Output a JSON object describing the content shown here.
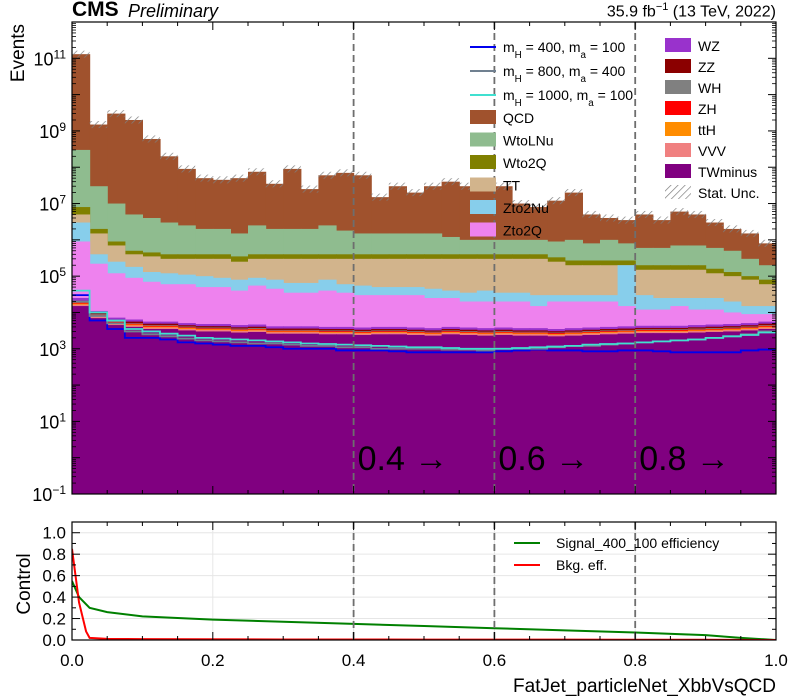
{
  "header": {
    "experiment": "CMS",
    "label": "Preliminary",
    "lumi_value": "35.9 fb",
    "lumi_exp": "−1",
    "lumi_suffix": " (13 TeV, 2022)"
  },
  "chart_data": [
    {
      "type": "area",
      "kind": "stacked-histogram",
      "xlabel": "FatJet_particleNet_XbbVsQCD",
      "ylabel": "Events",
      "xlim": [
        0.0,
        1.0
      ],
      "ylim": [
        0.1,
        1000000000000.0
      ],
      "yscale": "log",
      "y_ticks": [
        {
          "value": 0.1,
          "base": "10",
          "exp": "−1"
        },
        {
          "value": 10,
          "base": "10",
          "exp": "1"
        },
        {
          "value": 1000,
          "base": "10",
          "exp": "3"
        },
        {
          "value": 100000,
          "base": "10",
          "exp": "5"
        },
        {
          "value": 10000000,
          "base": "10",
          "exp": "7"
        },
        {
          "value": 1000000000,
          "base": "10",
          "exp": "9"
        },
        {
          "value": 100000000000,
          "base": "10",
          "exp": "11"
        }
      ],
      "cut_lines": [
        0.4,
        0.6,
        0.8
      ],
      "cut_labels": [
        {
          "x": 0.4,
          "text": "0.4 →"
        },
        {
          "x": 0.6,
          "text": "0.6 →"
        },
        {
          "x": 0.8,
          "text": "0.8 →"
        }
      ],
      "bin_edges_start": 0.0,
      "bin_width": 0.025,
      "layer_order_bottom_to_top": [
        "TWminus",
        "VVV",
        "ttH",
        "ZH",
        "WH",
        "ZZ",
        "WZ",
        "Zto2Q",
        "Zto2Nu",
        "TT",
        "Wto2Q",
        "WtoLNu",
        "QCD"
      ],
      "stacked_cumulative_totals": {
        "TWminus": [
          15000,
          7000,
          4500,
          4000,
          3500,
          3500,
          3200,
          3000,
          3000,
          2800,
          2900,
          2600,
          2600,
          2600,
          2500,
          2500,
          2400,
          2500,
          2500,
          2400,
          2300,
          2500,
          2400,
          2300,
          2400,
          2300,
          2300,
          2200,
          2300,
          2400,
          2500,
          2600,
          2700,
          2700,
          2700,
          2800,
          2900,
          3000,
          3200,
          3500
        ],
        "VVV": [
          16500,
          7700,
          4950,
          4400,
          3850,
          3850,
          3520,
          3300,
          3300,
          3080,
          3190,
          2860,
          2860,
          2860,
          2750,
          2750,
          2640,
          2750,
          2750,
          2640,
          2530,
          2750,
          2640,
          2530,
          2640,
          2530,
          2530,
          2420,
          2530,
          2640,
          2750,
          2860,
          2970,
          2970,
          2970,
          3080,
          3190,
          3300,
          3520,
          3850
        ],
        "ttH": [
          17500,
          8200,
          5200,
          4650,
          4050,
          4050,
          3700,
          3470,
          3470,
          3240,
          3350,
          3000,
          3000,
          3000,
          2890,
          2890,
          2770,
          2890,
          2890,
          2770,
          2660,
          2890,
          2770,
          2660,
          2770,
          2660,
          2660,
          2540,
          2660,
          2770,
          2890,
          3000,
          3120,
          3120,
          3120,
          3240,
          3350,
          3470,
          3700,
          4050
        ],
        "ZH": [
          18500,
          8600,
          5500,
          4900,
          4300,
          4300,
          3900,
          3650,
          3650,
          3400,
          3500,
          3150,
          3150,
          3150,
          3050,
          3050,
          2900,
          3050,
          3050,
          2900,
          2800,
          3050,
          2900,
          2800,
          2900,
          2800,
          2800,
          2700,
          2800,
          2900,
          3050,
          3150,
          3300,
          3300,
          3300,
          3400,
          3500,
          3650,
          3900,
          4300
        ],
        "WH": [
          19500,
          9000,
          5800,
          5100,
          4500,
          4500,
          4100,
          3850,
          3850,
          3600,
          3700,
          3300,
          3300,
          3300,
          3200,
          3200,
          3050,
          3200,
          3200,
          3050,
          2950,
          3200,
          3050,
          2950,
          3050,
          2950,
          2950,
          2800,
          2950,
          3050,
          3200,
          3300,
          3450,
          3450,
          3450,
          3600,
          3700,
          3850,
          4100,
          4500
        ],
        "ZZ": [
          21000,
          9800,
          6300,
          5600,
          4900,
          4900,
          4450,
          4200,
          4200,
          3900,
          4050,
          3600,
          3600,
          3600,
          3500,
          3500,
          3350,
          3500,
          3500,
          3350,
          3200,
          3500,
          3350,
          3200,
          3350,
          3200,
          3200,
          3050,
          3200,
          3350,
          3500,
          3600,
          3750,
          3750,
          3750,
          3900,
          4050,
          4200,
          4450,
          4900
        ],
        "WZ": [
          25000,
          11000,
          7200,
          6400,
          5600,
          5600,
          5100,
          4800,
          4800,
          4500,
          4650,
          4150,
          4150,
          4150,
          4000,
          4000,
          3850,
          4000,
          4000,
          3850,
          3700,
          4000,
          3850,
          3700,
          3850,
          3700,
          3700,
          3500,
          3700,
          3850,
          4000,
          4150,
          4300,
          4300,
          4300,
          4500,
          4650,
          4800,
          5100,
          5600
        ],
        "Zto2Q": [
          900000,
          220000,
          120000,
          90000,
          70000,
          60000,
          60000,
          50000,
          50000,
          40000,
          55000,
          45000,
          35000,
          35000,
          40000,
          35000,
          30000,
          30000,
          30000,
          30000,
          25000,
          25000,
          20000,
          20000,
          20000,
          20000,
          15000,
          20000,
          20000,
          20000,
          20000,
          15000,
          12000,
          12000,
          15000,
          12000,
          12000,
          10000,
          9000,
          9000
        ],
        "Zto2Nu": [
          3000000,
          400000,
          250000,
          180000,
          130000,
          120000,
          110000,
          100000,
          90000,
          80000,
          90000,
          80000,
          65000,
          65000,
          80000,
          60000,
          55000,
          50000,
          50000,
          50000,
          45000,
          40000,
          35000,
          40000,
          35000,
          35000,
          30000,
          30000,
          30000,
          30000,
          30000,
          200000,
          30000,
          25000,
          25000,
          25000,
          25000,
          20000,
          15000,
          15000
        ],
        "TT": [
          5000000,
          1500000,
          700000,
          400000,
          350000,
          300000,
          300000,
          300000,
          300000,
          250000,
          300000,
          300000,
          300000,
          300000,
          300000,
          300000,
          300000,
          300000,
          300000,
          300000,
          300000,
          300000,
          300000,
          300000,
          300000,
          300000,
          300000,
          250000,
          200000,
          200000,
          200000,
          200000,
          150000,
          150000,
          150000,
          150000,
          120000,
          100000,
          80000,
          60000
        ],
        "Wto2Q": [
          8000000,
          2000000,
          900000,
          500000,
          450000,
          400000,
          400000,
          400000,
          400000,
          350000,
          400000,
          400000,
          400000,
          400000,
          400000,
          400000,
          400000,
          400000,
          400000,
          400000,
          400000,
          400000,
          400000,
          400000,
          400000,
          400000,
          400000,
          330000,
          270000,
          270000,
          270000,
          270000,
          200000,
          200000,
          200000,
          200000,
          160000,
          130000,
          100000,
          80000
        ],
        "WtoLNu": [
          300000000,
          30000000,
          10000000,
          5000000,
          4000000,
          3000000,
          2500000,
          2000000,
          2000000,
          1500000,
          2500000,
          2000000,
          2000000,
          2000000,
          2500000,
          1800000,
          1500000,
          1500000,
          1500000,
          1500000,
          1500000,
          1200000,
          1000000,
          1000000,
          1000000,
          1000000,
          1000000,
          900000,
          1000000,
          800000,
          1000000,
          800000,
          600000,
          600000,
          700000,
          700000,
          600000,
          500000,
          300000,
          200000
        ],
        "QCD": [
          130000000000,
          1500000000,
          3000000000,
          2000000000,
          600000000,
          200000000,
          90000000,
          50000000,
          45000000,
          50000000,
          75000000,
          35000000,
          90000000,
          25000000,
          60000000,
          70000000,
          60000000,
          15000000,
          30000000,
          20000000,
          30000000,
          40000000,
          30000000,
          40000000,
          30000000,
          10000000,
          8000000,
          12000000,
          20000000,
          5000000,
          4000000,
          3500000,
          5000000,
          3500000,
          6000000,
          5000000,
          3000000,
          2000000,
          1500000,
          800000
        ]
      },
      "colors": {
        "QCD": "#a0522d",
        "WtoLNu": "#8fbc8f",
        "Wto2Q": "#808000",
        "TT": "#d2b48c",
        "Zto2Nu": "#87ceeb",
        "Zto2Q": "#ee82ee",
        "WZ": "#9932cc",
        "ZZ": "#8b0000",
        "WH": "#808080",
        "ZH": "#ff0000",
        "ttH": "#ff8c00",
        "VVV": "#f08080",
        "TWminus": "#800080"
      },
      "signals": [
        {
          "name_parts": [
            "m",
            "H",
            " = 400, m",
            "a",
            " = 100"
          ],
          "color": "#0000ee",
          "values": [
            30000,
            6000,
            3500,
            2000,
            2000,
            1800,
            1500,
            1400,
            1300,
            1200,
            1200,
            1100,
            1000,
            1000,
            1000,
            900,
            900,
            900,
            850,
            800,
            800,
            800,
            800,
            800,
            850,
            900,
            950,
            900,
            900,
            850,
            850,
            900,
            900,
            850,
            800,
            800,
            800,
            800,
            900,
            950
          ]
        },
        {
          "name_parts": [
            "m",
            "H",
            " = 800, m",
            "a",
            " = 400"
          ],
          "color": "#708090",
          "values": [
            20000,
            8000,
            5000,
            3000,
            2500,
            2200,
            1900,
            1700,
            1600,
            1500,
            1400,
            1400,
            1300,
            1200,
            1200,
            1100,
            1100,
            1000,
            1000,
            1000,
            1000,
            950,
            950,
            900,
            1000,
            1000,
            1000,
            1100,
            1200,
            1200,
            1300,
            1400,
            1500,
            1600,
            1700,
            1800,
            2000,
            2200,
            2500,
            3000
          ]
        },
        {
          "name_parts": [
            "m",
            "H",
            " = 1000, m",
            "a",
            " = 100"
          ],
          "color": "#40e0d0",
          "values": [
            40000,
            10000,
            6000,
            3500,
            3000,
            2600,
            2300,
            2000,
            1900,
            1800,
            1700,
            1600,
            1500,
            1400,
            1350,
            1300,
            1250,
            1200,
            1150,
            1100,
            1100,
            1050,
            1000,
            1000,
            1000,
            1050,
            1100,
            1150,
            1200,
            1300,
            1350,
            1400,
            1500,
            1600,
            1700,
            1800,
            2000,
            2200,
            2400,
            2800
          ]
        }
      ],
      "legend": {
        "placement": "top-right",
        "col1": [
          "QCD",
          "WtoLNu",
          "Wto2Q",
          "TT",
          "Zto2Nu",
          "Zto2Q"
        ],
        "col2": [
          "WZ",
          "ZZ",
          "WH",
          "ZH",
          "ttH",
          "VVV",
          "TWminus"
        ],
        "stat_label": "Stat. Unc."
      }
    },
    {
      "type": "line",
      "xlabel": "FatJet_particleNet_XbbVsQCD",
      "ylabel": "Control",
      "xlim": [
        0.0,
        1.0
      ],
      "ylim": [
        0.0,
        1.1
      ],
      "grid": true,
      "x_ticks": [
        "0.0",
        "0.2",
        "0.4",
        "0.6",
        "0.8",
        "1.0"
      ],
      "y_ticks": [
        "0.0",
        "0.2",
        "0.4",
        "0.6",
        "0.8",
        "1.0"
      ],
      "legend_placement": "top-right",
      "series": [
        {
          "name": "Signal_400_100 efficiency",
          "color": "#008000",
          "x": [
            0.0,
            0.01,
            0.025,
            0.05,
            0.1,
            0.2,
            0.3,
            0.4,
            0.5,
            0.6,
            0.7,
            0.8,
            0.9,
            0.95,
            1.0
          ],
          "y": [
            0.55,
            0.4,
            0.3,
            0.26,
            0.22,
            0.19,
            0.17,
            0.15,
            0.13,
            0.11,
            0.09,
            0.07,
            0.045,
            0.02,
            0.0
          ]
        },
        {
          "name": "Bkg. eff.",
          "color": "#ff0000",
          "x": [
            0.0,
            0.005,
            0.01,
            0.02,
            0.025,
            0.05,
            0.1,
            0.3,
            0.5,
            0.7,
            0.9,
            1.0
          ],
          "y": [
            0.85,
            0.6,
            0.35,
            0.08,
            0.02,
            0.01,
            0.008,
            0.005,
            0.004,
            0.003,
            0.002,
            0.0
          ]
        }
      ]
    }
  ]
}
